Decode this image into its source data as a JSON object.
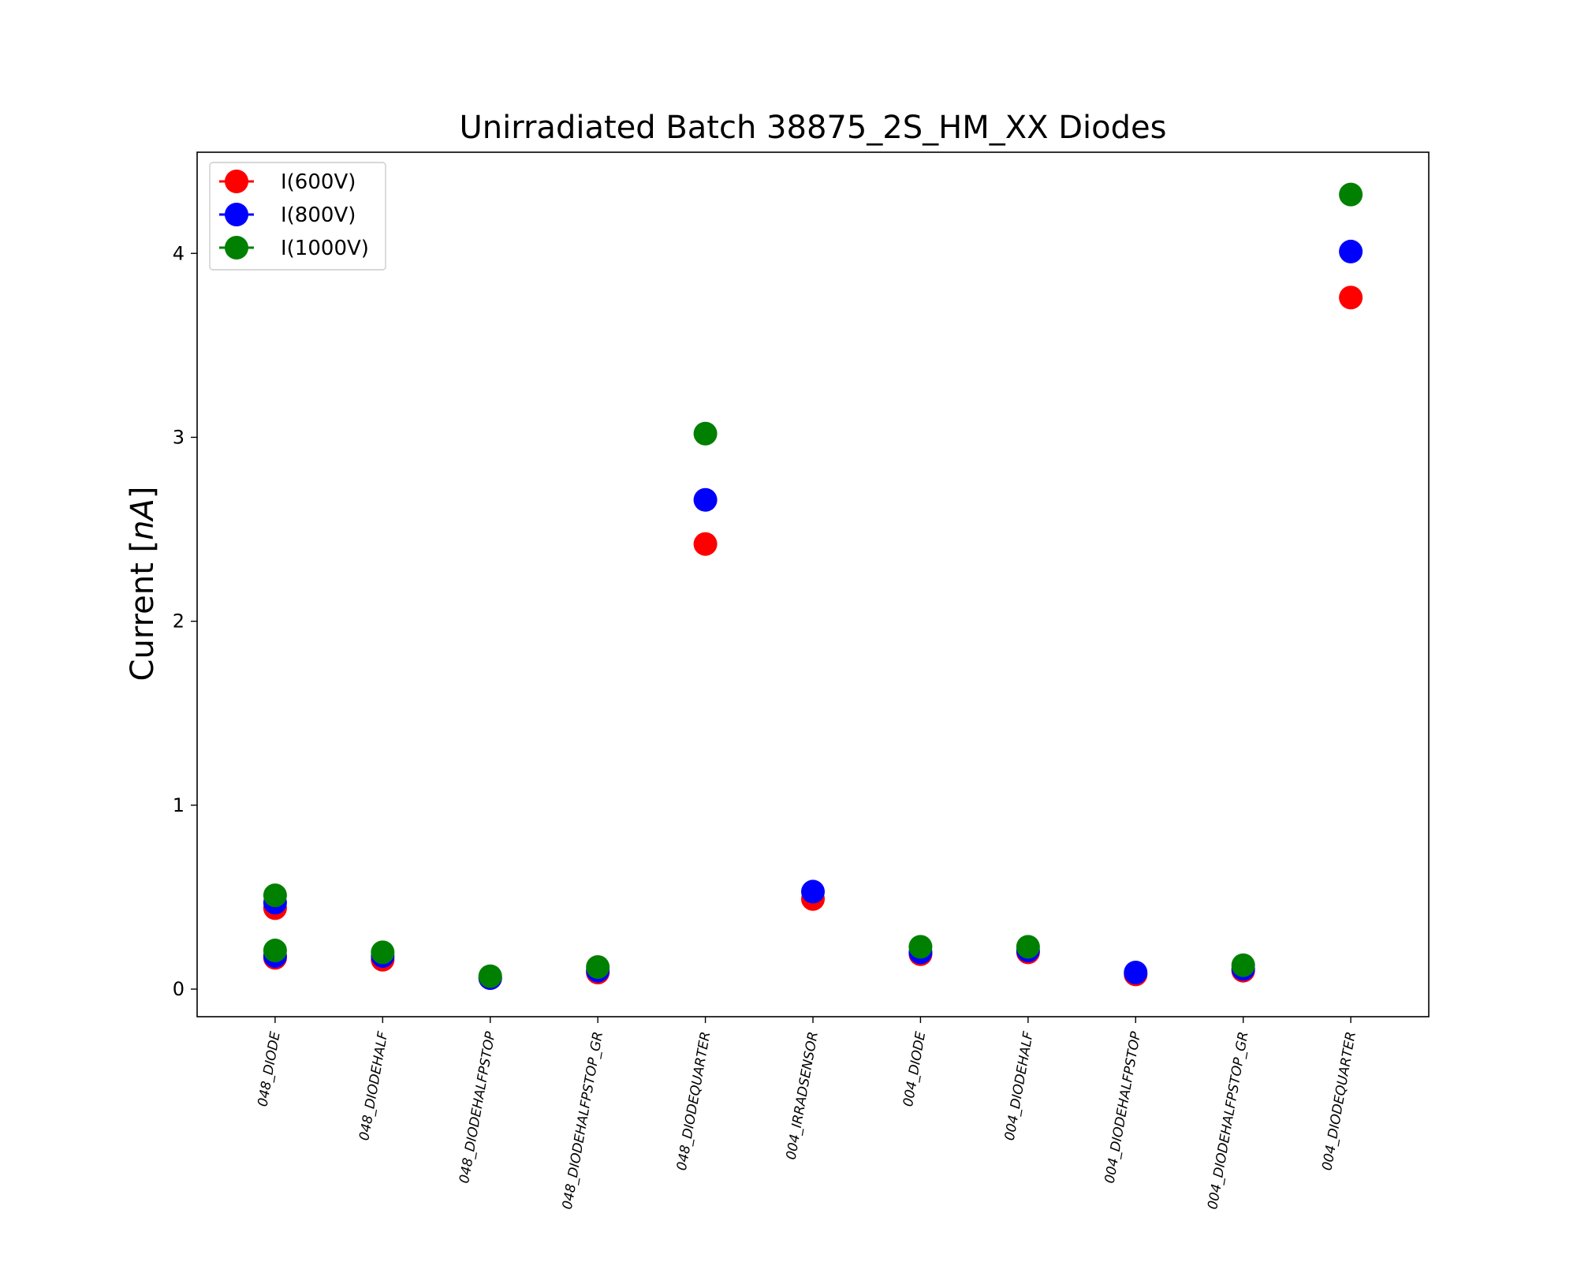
{
  "chart_data": {
    "type": "scatter",
    "title": "Unirradiated Batch 38875_2S_HM_XX Diodes",
    "xlabel": "",
    "ylabel": "Current [nA]",
    "ylabel_parts": {
      "text": "Current [",
      "unit": "nA",
      "close": "]"
    },
    "ylim": [
      -0.15,
      4.55
    ],
    "yticks": [
      0,
      1,
      2,
      3,
      4
    ],
    "grid": false,
    "legend_position": "top-left",
    "categories": [
      "048_DIODE",
      "048_DIODEHALF",
      "048_DIODEHALFPSTOP",
      "048_DIODEHALFPSTOP_GR",
      "048_DIODEQUARTER",
      "004_IRRADSENSOR",
      "004_DIODE",
      "004_DIODEHALF",
      "004_DIODEHALFPSTOP",
      "004_DIODEHALFPSTOP_GR",
      "004_DIODEQUARTER"
    ],
    "series": [
      {
        "name": "I(600V)",
        "color": "#ff0000",
        "points": [
          {
            "x": 0,
            "y": 0.44
          },
          {
            "x": 0,
            "y": 0.17
          },
          {
            "x": 1,
            "y": 0.16
          },
          {
            "x": 2,
            "y": 0.06
          },
          {
            "x": 3,
            "y": 0.09
          },
          {
            "x": 4,
            "y": 2.42
          },
          {
            "x": 5,
            "y": 0.49
          },
          {
            "x": 6,
            "y": 0.19
          },
          {
            "x": 7,
            "y": 0.2
          },
          {
            "x": 8,
            "y": 0.08
          },
          {
            "x": 9,
            "y": 0.1
          },
          {
            "x": 10,
            "y": 3.76
          }
        ]
      },
      {
        "name": "I(800V)",
        "color": "#0000ff",
        "points": [
          {
            "x": 0,
            "y": 0.47
          },
          {
            "x": 0,
            "y": 0.18
          },
          {
            "x": 1,
            "y": 0.18
          },
          {
            "x": 2,
            "y": 0.06
          },
          {
            "x": 3,
            "y": 0.1
          },
          {
            "x": 4,
            "y": 2.66
          },
          {
            "x": 5,
            "y": 0.53
          },
          {
            "x": 6,
            "y": 0.2
          },
          {
            "x": 7,
            "y": 0.21
          },
          {
            "x": 8,
            "y": 0.09
          },
          {
            "x": 9,
            "y": 0.11
          },
          {
            "x": 10,
            "y": 4.01
          }
        ]
      },
      {
        "name": "I(1000V)",
        "color": "#008000",
        "points": [
          {
            "x": 0,
            "y": 0.51
          },
          {
            "x": 0,
            "y": 0.21
          },
          {
            "x": 1,
            "y": 0.2
          },
          {
            "x": 2,
            "y": 0.07
          },
          {
            "x": 3,
            "y": 0.12
          },
          {
            "x": 4,
            "y": 3.02
          },
          {
            "x": 5,
            "y": null
          },
          {
            "x": 6,
            "y": 0.23
          },
          {
            "x": 7,
            "y": 0.23
          },
          {
            "x": 8,
            "y": null
          },
          {
            "x": 9,
            "y": 0.13
          },
          {
            "x": 10,
            "y": 4.32
          }
        ]
      }
    ]
  }
}
